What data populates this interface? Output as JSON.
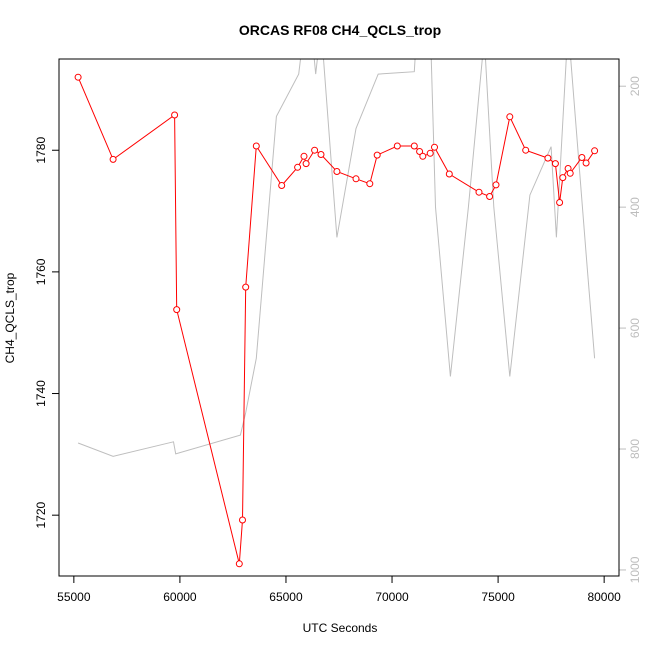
{
  "chart_data": {
    "type": "line",
    "title": "ORCAS RF08 CH4_QCLS_trop",
    "xlabel": "UTC Seconds",
    "ylabel": "CH4_QCLS_trop",
    "xlim": [
      54300,
      80700
    ],
    "ylim": [
      1710,
      1795
    ],
    "xticks": [
      55000,
      60000,
      65000,
      70000,
      75000,
      80000
    ],
    "yticks": [
      1720,
      1740,
      1760,
      1780
    ],
    "y2lim": [
      1010,
      155
    ],
    "y2ticks": [
      200,
      400,
      600,
      800,
      1000
    ],
    "grid": false,
    "colors": {
      "ch4": "#ff0000",
      "secondary": "#bebebe"
    },
    "series": [
      {
        "role": "ch4",
        "x": [
          55200,
          56850,
          59750,
          59850,
          62800,
          62950,
          63100,
          63600,
          64800,
          65550,
          65850,
          65950,
          66350,
          66650,
          67400,
          68300,
          68950,
          69300,
          70250,
          71050,
          71300,
          71450,
          71800,
          72000,
          72700,
          74100,
          74600,
          74900,
          75550,
          76300,
          77350,
          77700,
          77900,
          78050,
          78300,
          78400,
          78950,
          79150,
          79550
        ],
        "y": [
          1792,
          1778.5,
          1785.8,
          1753.8,
          1712,
          1719.2,
          1757.5,
          1780.7,
          1774.2,
          1777.2,
          1779,
          1777.8,
          1780,
          1779.3,
          1776.5,
          1775.3,
          1774.5,
          1779.2,
          1780.7,
          1780.7,
          1779.8,
          1779,
          1779.5,
          1780.5,
          1776.1,
          1773.1,
          1772.4,
          1774.3,
          1785.5,
          1780,
          1778.7,
          1777.8,
          1771.4,
          1775.5,
          1777,
          1776.2,
          1778.8,
          1777.9,
          1779.9
        ]
      },
      {
        "role": "secondary",
        "x": [
          55200,
          56850,
          59700,
          59800,
          62850,
          63100,
          63600,
          64550,
          65600,
          66050,
          66400,
          66650,
          67400,
          68300,
          69350,
          70200,
          71050,
          71600,
          72050,
          72750,
          73600,
          74350,
          74800,
          75550,
          76500,
          77500,
          77750,
          78300,
          79200,
          79550
        ],
        "y2": [
          790,
          812,
          788,
          808,
          777,
          740,
          650,
          250,
          180,
          50,
          180,
          100,
          450,
          270,
          180,
          178,
          176,
          -150,
          400,
          680,
          400,
          120,
          400,
          680,
          380,
          300,
          450,
          100,
          500,
          650
        ]
      }
    ]
  }
}
